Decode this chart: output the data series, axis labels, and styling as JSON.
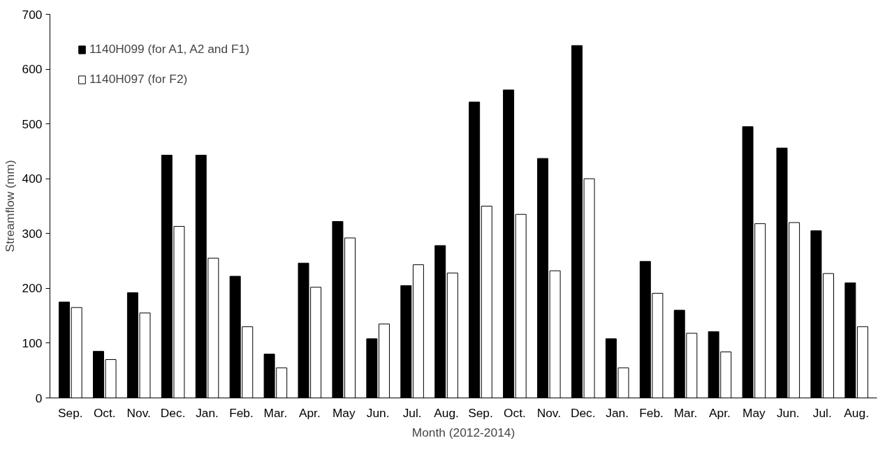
{
  "chart_data": {
    "type": "bar",
    "xlabel": "Month (2012-2014)",
    "ylabel": "Streamflow (mm)",
    "categories": [
      "Sep.",
      "Oct.",
      "Nov.",
      "Dec.",
      "Jan.",
      "Feb.",
      "Mar.",
      "Apr.",
      "May",
      "Jun.",
      "Jul.",
      "Aug.",
      "Sep.",
      "Oct.",
      "Nov.",
      "Dec.",
      "Jan.",
      "Feb.",
      "Mar.",
      "Apr.",
      "May",
      "Jun.",
      "Jul.",
      "Aug."
    ],
    "series": [
      {
        "name": "1140H099 (for A1, A2 and F1)",
        "color": "#000000",
        "values": [
          175,
          85,
          192,
          443,
          443,
          222,
          80,
          246,
          322,
          108,
          205,
          278,
          540,
          562,
          437,
          643,
          108,
          249,
          160,
          121,
          495,
          456,
          305,
          210
        ]
      },
      {
        "name": "1140H097 (for F2)",
        "color": "#ffffff",
        "values": [
          165,
          70,
          155,
          313,
          255,
          130,
          55,
          202,
          292,
          135,
          243,
          228,
          350,
          335,
          232,
          400,
          55,
          191,
          118,
          84,
          318,
          320,
          227,
          130
        ]
      }
    ],
    "ylim": [
      0,
      700
    ],
    "yticks": [
      0,
      100,
      200,
      300,
      400,
      500,
      600,
      700
    ],
    "grid": false,
    "legend": "top left"
  }
}
